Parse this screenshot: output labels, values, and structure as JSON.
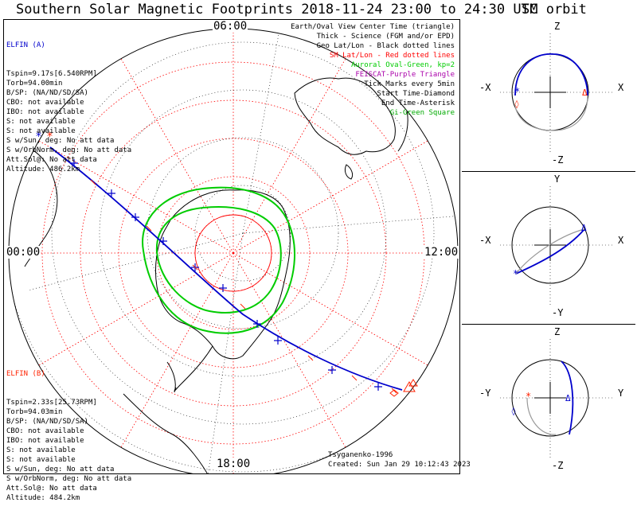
{
  "main_title": "Southern Solar Magnetic Footprints 2018-11-24 23:00 to 24:30 UTC",
  "orbit_title": "SM orbit",
  "elfin_a": {
    "label": "ELFIN (A)",
    "color": "#0000cc",
    "lines": [
      "Tspin=9.17s[6.540RPM]",
      "Torb=94.00min",
      "B/SP: (NA/ND/SD/SA)",
      "CBO: not available",
      "IBO: not available",
      "S: not available",
      "S: not available",
      "S w/Sun, deg: No att data",
      "S w/OrbNorm, deg: No att data",
      "Att.Sol@: No att data",
      "Altitude: 486.2km"
    ]
  },
  "elfin_b": {
    "label": "ELFIN (B)",
    "color": "#ff2200",
    "lines": [
      "Tspin=2.33s[25.73RPM]",
      "Torb=94.03min",
      "B/SP: (NA/ND/SD/SA)",
      "CBO: not available",
      "IBO: not available",
      "S: not available",
      "S: not available",
      "S w/Sun, deg: No att data",
      "S w/OrbNorm, deg: No att data",
      "Att.Sol@: No att data",
      "Altitude: 484.2km"
    ]
  },
  "legend": [
    {
      "text": "Earth/Oval View Center Time (triangle)",
      "color": "#000000"
    },
    {
      "text": "Thick - Science (FGM and/or EPD)",
      "color": "#000000"
    },
    {
      "text": "Geo Lat/Lon - Black dotted lines",
      "color": "#000000"
    },
    {
      "text": "SM Lat/Lon - Red dotted lines",
      "color": "#ff0000"
    },
    {
      "text": "Auroral Oval-Green, kp=2",
      "color": "#00cc00"
    },
    {
      "text": "FEISCAT-Purple Triangle",
      "color": "#aa00aa"
    },
    {
      "text": "Tick Marks every 5min",
      "color": "#000000"
    },
    {
      "text": "Start Time-Diamond",
      "color": "#000000"
    },
    {
      "text": "End Time-Asterisk",
      "color": "#000000"
    },
    {
      "text": "Gi-Green Square",
      "color": "#00aa00"
    }
  ],
  "hours": {
    "top": "06:00",
    "left": "00:00",
    "right": "12:00",
    "bottom": "18:00"
  },
  "credit": {
    "author": "Tsyganenko-1996",
    "created": "Created: Sun Jan 29 10:12:43 2023"
  },
  "colors": {
    "trackA": "#0000cc",
    "trackB": "#ff2200",
    "oval": "#00cc00",
    "grid": "#ff0000",
    "geo": "#000000",
    "gray": "#999999"
  },
  "orbit_panels": [
    {
      "top": "Z",
      "bottom": "-Z",
      "left": "-X",
      "right": "X"
    },
    {
      "top": "Y",
      "bottom": "-Y",
      "left": "-X",
      "right": "X"
    },
    {
      "top": "Z",
      "bottom": "-Z",
      "left": "-Y",
      "right": "Y"
    }
  ],
  "chart_data": {
    "type": "scatter",
    "title": "Southern Solar Magnetic Footprints 2018-11-24 23:00 to 24:30 UTC",
    "projection": "polar, south SM",
    "mlt_labels": [
      "06:00",
      "00:00",
      "12:00",
      "18:00"
    ],
    "series": [
      {
        "name": "ELFIN (A)",
        "color": "#0000cc"
      },
      {
        "name": "ELFIN (B)",
        "color": "#ff2200"
      }
    ],
    "grid": true
  }
}
